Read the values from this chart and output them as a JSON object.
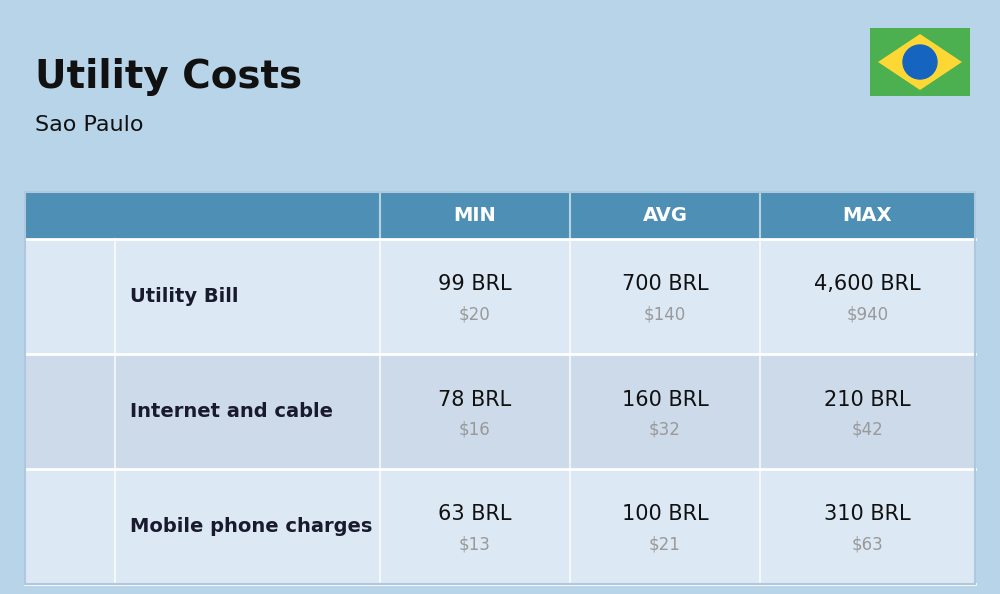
{
  "title": "Utility Costs",
  "subtitle": "Sao Paulo",
  "background_color": "#b8d4e8",
  "header_color": "#4e8fb5",
  "header_text_color": "#ffffff",
  "row_bg_even": "#dce8f3",
  "row_bg_odd": "#ccdaea",
  "text_color": "#111111",
  "label_color": "#1a1a2e",
  "usd_text_color": "#999999",
  "divider_color": "#b0c8de",
  "col_headers": [
    "MIN",
    "AVG",
    "MAX"
  ],
  "title_fontsize": 28,
  "subtitle_fontsize": 16,
  "header_fontsize": 14,
  "label_fontsize": 14,
  "value_fontsize": 15,
  "usd_fontsize": 12,
  "rows": [
    {
      "label": "Utility Bill",
      "icon": "utility",
      "min_brl": "99 BRL",
      "min_usd": "$20",
      "avg_brl": "700 BRL",
      "avg_usd": "$140",
      "max_brl": "4,600 BRL",
      "max_usd": "$940"
    },
    {
      "label": "Internet and cable",
      "icon": "internet",
      "min_brl": "78 BRL",
      "min_usd": "$16",
      "avg_brl": "160 BRL",
      "avg_usd": "$32",
      "max_brl": "210 BRL",
      "max_usd": "$42"
    },
    {
      "label": "Mobile phone charges",
      "icon": "mobile",
      "min_brl": "63 BRL",
      "min_usd": "$13",
      "avg_brl": "100 BRL",
      "avg_usd": "$21",
      "max_brl": "310 BRL",
      "max_usd": "$63"
    }
  ],
  "flag_green": "#4caf50",
  "flag_yellow": "#fdd835",
  "flag_blue": "#1565c0"
}
